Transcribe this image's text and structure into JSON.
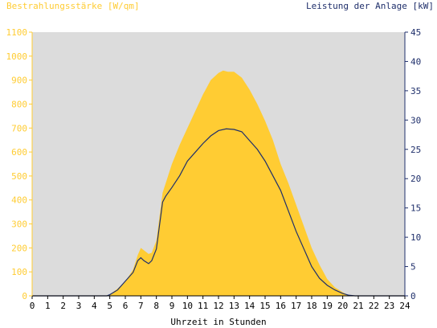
{
  "chart_data": {
    "type": "area",
    "title_left": "Bestrahlungsstärke [W/qm]",
    "title_right": "Leistung der Anlage [kW]",
    "xlabel": "Uhrzeit in Stunden",
    "xlim": [
      0,
      24
    ],
    "ylim_left": [
      0,
      1100
    ],
    "ylim_right": [
      0,
      45
    ],
    "x_ticks": [
      "0",
      "1",
      "2",
      "3",
      "4",
      "5",
      "6",
      "7",
      "8",
      "9",
      "10",
      "11",
      "12",
      "13",
      "14",
      "15",
      "16",
      "17",
      "18",
      "19",
      "20",
      "21",
      "22",
      "23",
      "24"
    ],
    "y_left_ticks": [
      "0",
      "100",
      "200",
      "300",
      "400",
      "500",
      "600",
      "700",
      "800",
      "900",
      "1000",
      "1100"
    ],
    "y_right_ticks": [
      "0",
      "5",
      "10",
      "15",
      "20",
      "25",
      "30",
      "35",
      "40",
      "45"
    ],
    "grid": false,
    "series": [
      {
        "name": "Bestrahlungsstärke [W/qm]",
        "axis": "left",
        "color": "#ffcc33",
        "x": [
          0,
          4.8,
          5.0,
          5.5,
          6.0,
          6.5,
          6.8,
          7.0,
          7.2,
          7.5,
          7.7,
          8.0,
          8.2,
          8.4,
          8.6,
          8.8,
          9.0,
          9.5,
          10.0,
          10.5,
          11.0,
          11.5,
          12.0,
          12.3,
          12.6,
          13.0,
          13.5,
          14.0,
          14.5,
          15.0,
          15.5,
          16.0,
          16.5,
          17.0,
          17.5,
          18.0,
          18.5,
          19.0,
          19.5,
          20.0,
          20.3,
          20.6,
          21.0,
          24
        ],
        "y": [
          0,
          0,
          5,
          30,
          60,
          110,
          170,
          200,
          190,
          175,
          180,
          230,
          330,
          430,
          470,
          510,
          550,
          630,
          700,
          770,
          840,
          900,
          930,
          940,
          935,
          935,
          910,
          860,
          800,
          730,
          650,
          550,
          470,
          380,
          290,
          200,
          130,
          70,
          35,
          15,
          5,
          0,
          0,
          0
        ]
      },
      {
        "name": "Leistung der Anlage [kW]",
        "axis": "right",
        "color": "#1f2f6b",
        "x": [
          0,
          4.8,
          5.0,
          5.5,
          6.0,
          6.5,
          6.8,
          7.0,
          7.2,
          7.5,
          7.7,
          8.0,
          8.2,
          8.4,
          8.6,
          9.0,
          9.5,
          10.0,
          10.5,
          11.0,
          11.5,
          12.0,
          12.5,
          13.0,
          13.5,
          14.0,
          14.5,
          15.0,
          15.5,
          16.0,
          16.5,
          17.0,
          17.5,
          18.0,
          18.5,
          19.0,
          19.5,
          20.0,
          20.4,
          20.8,
          21.0,
          24
        ],
        "y": [
          0,
          0,
          0.2,
          1.0,
          2.5,
          4.0,
          6.0,
          6.5,
          6.0,
          5.5,
          6.0,
          8.0,
          12.0,
          16.0,
          17.0,
          18.5,
          20.5,
          23.0,
          24.5,
          26.0,
          27.3,
          28.2,
          28.5,
          28.4,
          28.0,
          26.5,
          25.0,
          23.0,
          20.5,
          18.0,
          14.5,
          11.0,
          8.0,
          5.0,
          3.0,
          1.8,
          1.0,
          0.4,
          0.1,
          0,
          0,
          0
        ]
      }
    ]
  }
}
